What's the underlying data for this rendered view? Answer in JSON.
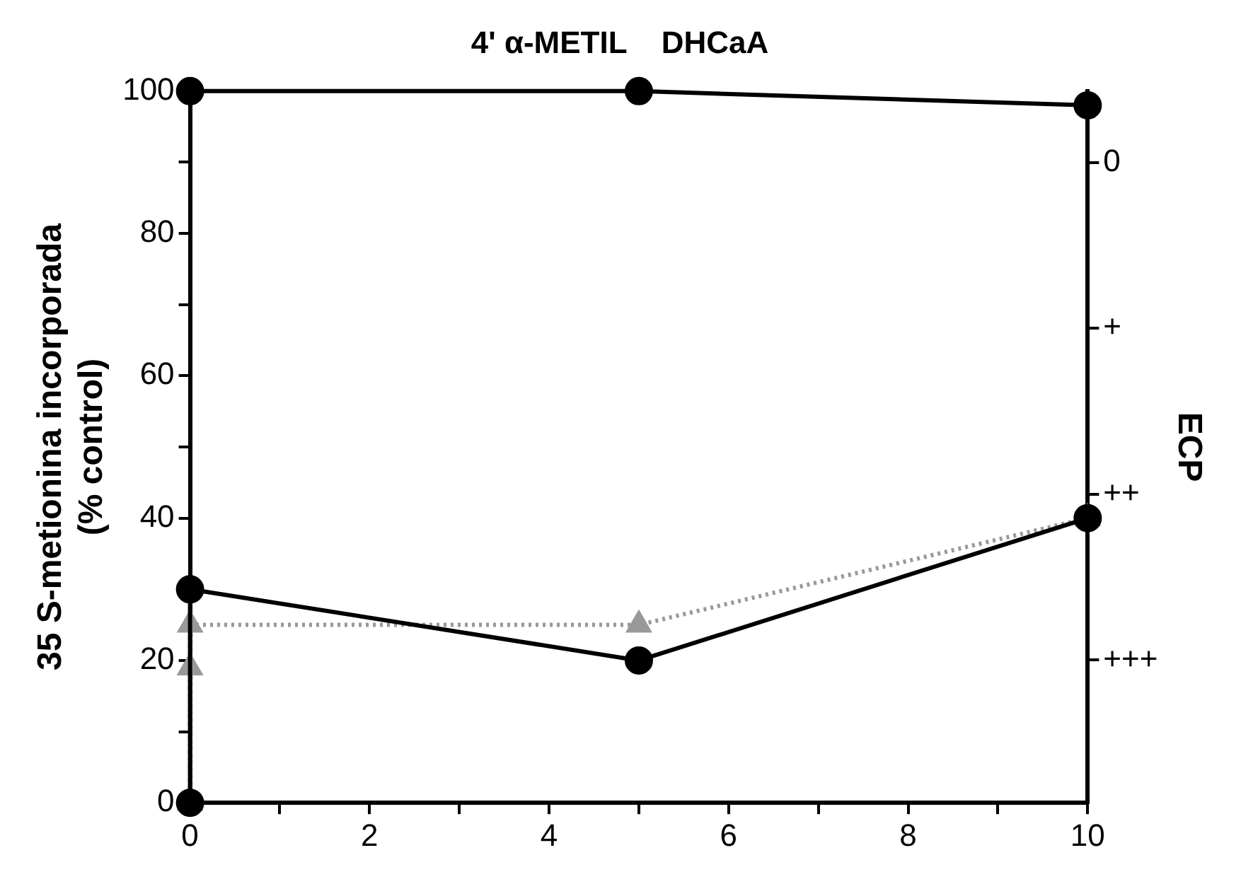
{
  "chart_data": {
    "type": "line",
    "title": "4' α-METIL    DHCaA",
    "ylabel": "35 S-metionina incorporada\n(% control)",
    "y2label": "ECP",
    "series": [
      {
        "x": [
          0,
          5,
          10
        ],
        "values": [
          100,
          100,
          98
        ],
        "color": "#000000",
        "marker": "circle",
        "line_style": "solid"
      },
      {
        "x": [
          0,
          0,
          5,
          10
        ],
        "values": [
          0,
          30,
          20,
          40
        ],
        "color": "#000000",
        "marker": "circle",
        "line_style": "solid"
      },
      {
        "x": [
          0,
          0,
          0,
          5,
          10
        ],
        "values": [
          0,
          19,
          25,
          25,
          40
        ],
        "color": "#999999",
        "marker": "triangle",
        "line_style": "dotted"
      }
    ],
    "xlim": [
      0,
      10
    ],
    "xticks": [
      0,
      {
        "value": 1,
        "label": null
      },
      2,
      {
        "value": 3,
        "label": null
      },
      4,
      {
        "value": 5,
        "label": null
      },
      6,
      {
        "value": 7,
        "label": null
      },
      8,
      {
        "value": 9,
        "label": null
      },
      10
    ],
    "ylim": [
      0,
      100
    ],
    "yticks": [
      0,
      {
        "value": 10,
        "label": null
      },
      20,
      {
        "value": 30,
        "label": null
      },
      40,
      {
        "value": 50,
        "label": null
      },
      60,
      {
        "value": 70,
        "label": null
      },
      80,
      {
        "value": 90,
        "label": null
      },
      100
    ],
    "annotations": [
      "0",
      "+",
      "++",
      "+++"
    ],
    "grid": false,
    "legend": false
  }
}
